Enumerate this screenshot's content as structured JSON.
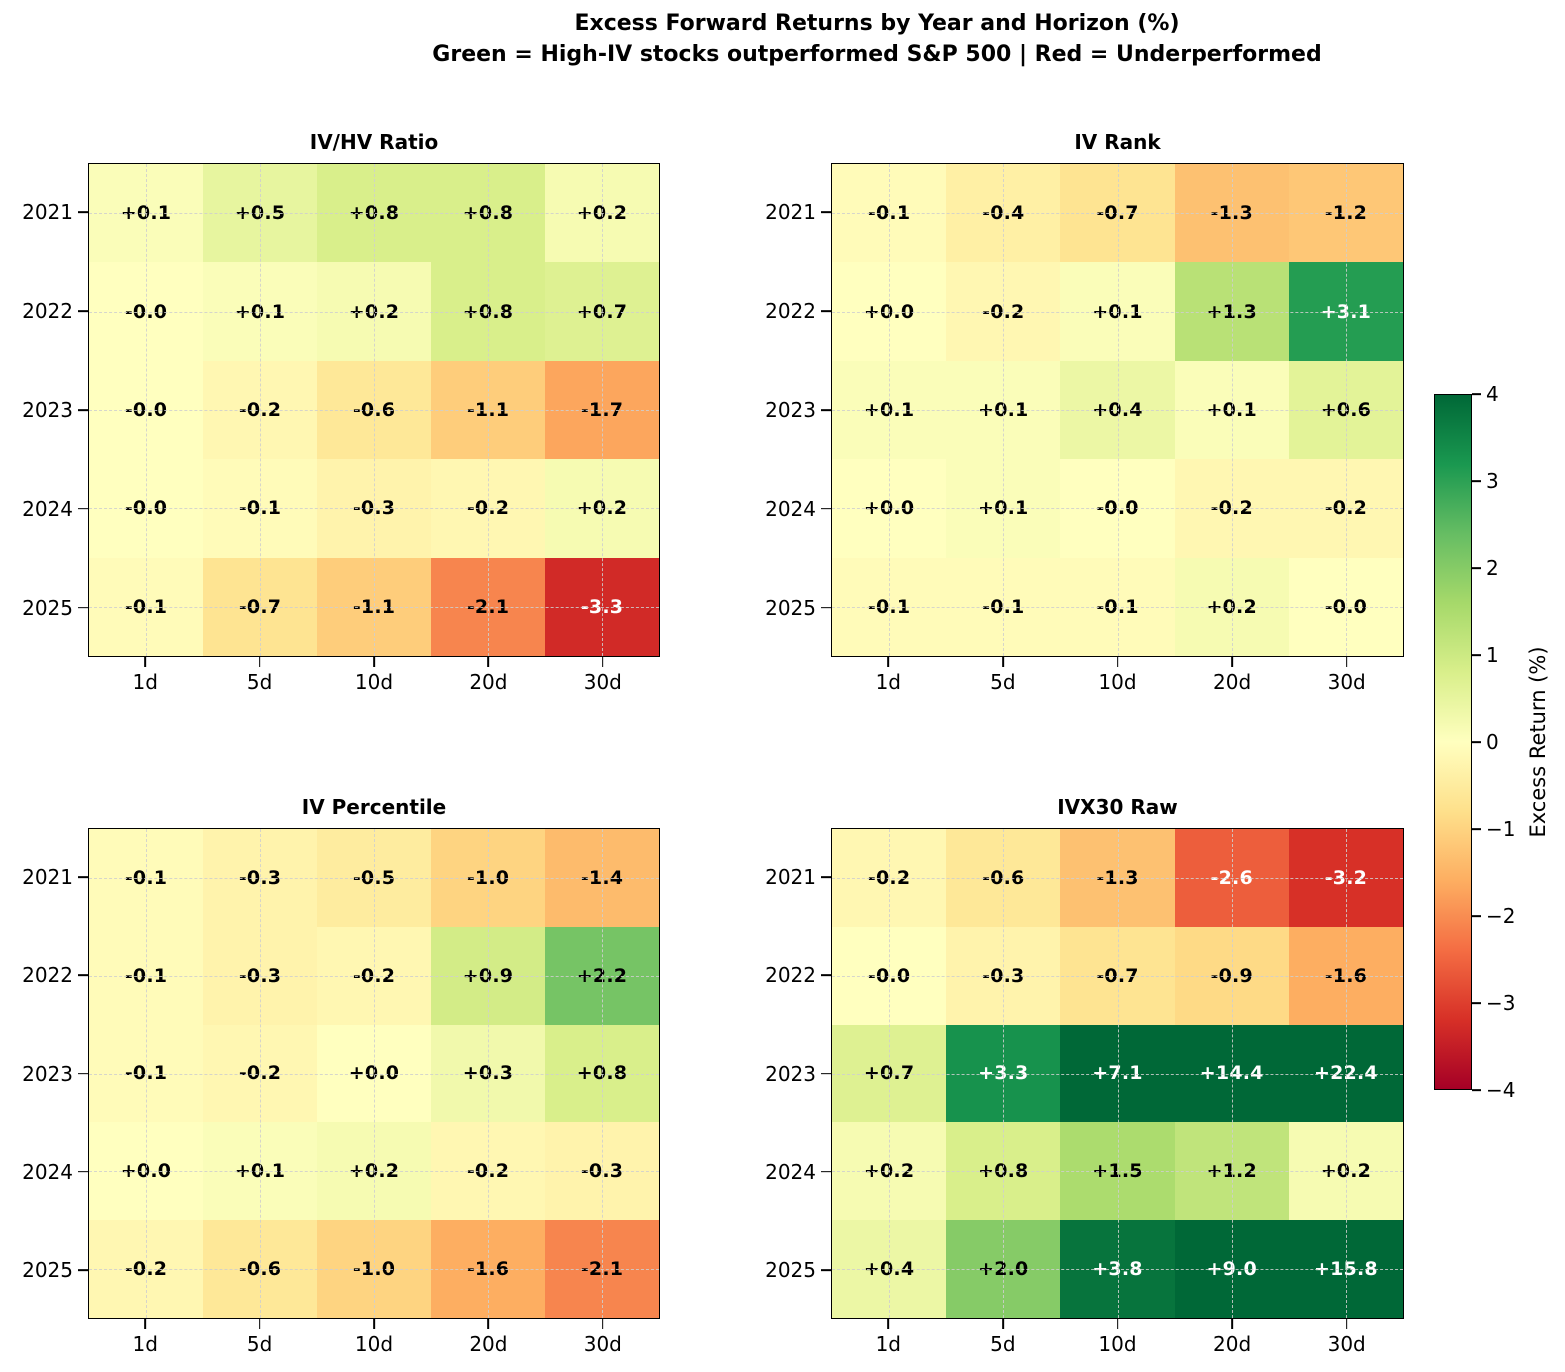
{
  "title": {
    "line1": "Excess Forward Returns by Year and Horizon (%)",
    "line2": "Green = High-IV stocks outperformed S&P 500 | Red = Underperformed"
  },
  "chart_data": [
    {
      "type": "heatmap",
      "id": "ivhv-ratio",
      "title": "IV/HV Ratio",
      "x": [
        "1d",
        "5d",
        "10d",
        "20d",
        "30d"
      ],
      "y": [
        "2021",
        "2022",
        "2023",
        "2024",
        "2025"
      ],
      "values": [
        [
          0.1,
          0.5,
          0.8,
          0.8,
          0.2
        ],
        [
          -0.0,
          0.1,
          0.2,
          0.8,
          0.7
        ],
        [
          -0.0,
          -0.2,
          -0.6,
          -1.1,
          -1.7
        ],
        [
          -0.0,
          -0.1,
          -0.3,
          -0.2,
          0.2
        ],
        [
          -0.1,
          -0.7,
          -1.1,
          -2.1,
          -3.3
        ]
      ],
      "labels": [
        [
          "+0.1",
          "+0.5",
          "+0.8",
          "+0.8",
          "+0.2"
        ],
        [
          "-0.0",
          "+0.1",
          "+0.2",
          "+0.8",
          "+0.7"
        ],
        [
          "-0.0",
          "-0.2",
          "-0.6",
          "-1.1",
          "-1.7"
        ],
        [
          "-0.0",
          "-0.1",
          "-0.3",
          "-0.2",
          "+0.2"
        ],
        [
          "-0.1",
          "-0.7",
          "-1.1",
          "-2.1",
          "-3.3"
        ]
      ]
    },
    {
      "type": "heatmap",
      "id": "iv-rank",
      "title": "IV Rank",
      "x": [
        "1d",
        "5d",
        "10d",
        "20d",
        "30d"
      ],
      "y": [
        "2021",
        "2022",
        "2023",
        "2024",
        "2025"
      ],
      "values": [
        [
          -0.1,
          -0.4,
          -0.7,
          -1.3,
          -1.2
        ],
        [
          0.0,
          -0.2,
          0.1,
          1.3,
          3.1
        ],
        [
          0.1,
          0.1,
          0.4,
          0.1,
          0.6
        ],
        [
          0.0,
          0.1,
          -0.0,
          -0.2,
          -0.2
        ],
        [
          -0.1,
          -0.1,
          -0.1,
          0.2,
          -0.0
        ]
      ],
      "labels": [
        [
          "-0.1",
          "-0.4",
          "-0.7",
          "-1.3",
          "-1.2"
        ],
        [
          "+0.0",
          "-0.2",
          "+0.1",
          "+1.3",
          "+3.1"
        ],
        [
          "+0.1",
          "+0.1",
          "+0.4",
          "+0.1",
          "+0.6"
        ],
        [
          "+0.0",
          "+0.1",
          "-0.0",
          "-0.2",
          "-0.2"
        ],
        [
          "-0.1",
          "-0.1",
          "-0.1",
          "+0.2",
          "-0.0"
        ]
      ]
    },
    {
      "type": "heatmap",
      "id": "iv-percentile",
      "title": "IV Percentile",
      "x": [
        "1d",
        "5d",
        "10d",
        "20d",
        "30d"
      ],
      "y": [
        "2021",
        "2022",
        "2023",
        "2024",
        "2025"
      ],
      "values": [
        [
          -0.1,
          -0.3,
          -0.5,
          -1.0,
          -1.4
        ],
        [
          -0.1,
          -0.3,
          -0.2,
          0.9,
          2.2
        ],
        [
          -0.1,
          -0.2,
          0.0,
          0.3,
          0.8
        ],
        [
          0.0,
          0.1,
          0.2,
          -0.2,
          -0.3
        ],
        [
          -0.2,
          -0.6,
          -1.0,
          -1.6,
          -2.1
        ]
      ],
      "labels": [
        [
          "-0.1",
          "-0.3",
          "-0.5",
          "-1.0",
          "-1.4"
        ],
        [
          "-0.1",
          "-0.3",
          "-0.2",
          "+0.9",
          "+2.2"
        ],
        [
          "-0.1",
          "-0.2",
          "+0.0",
          "+0.3",
          "+0.8"
        ],
        [
          "+0.0",
          "+0.1",
          "+0.2",
          "-0.2",
          "-0.3"
        ],
        [
          "-0.2",
          "-0.6",
          "-1.0",
          "-1.6",
          "-2.1"
        ]
      ]
    },
    {
      "type": "heatmap",
      "id": "ivx30-raw",
      "title": "IVX30 Raw",
      "x": [
        "1d",
        "5d",
        "10d",
        "20d",
        "30d"
      ],
      "y": [
        "2021",
        "2022",
        "2023",
        "2024",
        "2025"
      ],
      "values": [
        [
          -0.2,
          -0.6,
          -1.3,
          -2.6,
          -3.2
        ],
        [
          -0.0,
          -0.3,
          -0.7,
          -0.9,
          -1.6
        ],
        [
          0.7,
          3.3,
          7.1,
          14.4,
          22.4
        ],
        [
          0.2,
          0.8,
          1.5,
          1.2,
          0.2
        ],
        [
          0.4,
          2.0,
          3.8,
          9.0,
          15.8
        ]
      ],
      "labels": [
        [
          "-0.2",
          "-0.6",
          "-1.3",
          "-2.6",
          "-3.2"
        ],
        [
          "-0.0",
          "-0.3",
          "-0.7",
          "-0.9",
          "-1.6"
        ],
        [
          "+0.7",
          "+3.3",
          "+7.1",
          "+14.4",
          "+22.4"
        ],
        [
          "+0.2",
          "+0.8",
          "+1.5",
          "+1.2",
          "+0.2"
        ],
        [
          "+0.4",
          "+2.0",
          "+3.8",
          "+9.0",
          "+15.8"
        ]
      ]
    }
  ],
  "colorbar": {
    "label": "Excess Return (%)",
    "vmin": -4,
    "vmax": 4,
    "tick_labels": [
      "4",
      "3",
      "2",
      "1",
      "0",
      "−1",
      "−2",
      "−3",
      "−4"
    ],
    "tick_values": [
      4,
      3,
      2,
      1,
      0,
      -1,
      -2,
      -3,
      -4
    ],
    "colormap": "RdYlGn",
    "stops": [
      "#a50026",
      "#d73027",
      "#f46d43",
      "#fdae61",
      "#fee08b",
      "#ffffbf",
      "#d9ef8b",
      "#a6d96a",
      "#66bd63",
      "#1a9850",
      "#006837"
    ],
    "text_white_threshold": 2.5
  }
}
